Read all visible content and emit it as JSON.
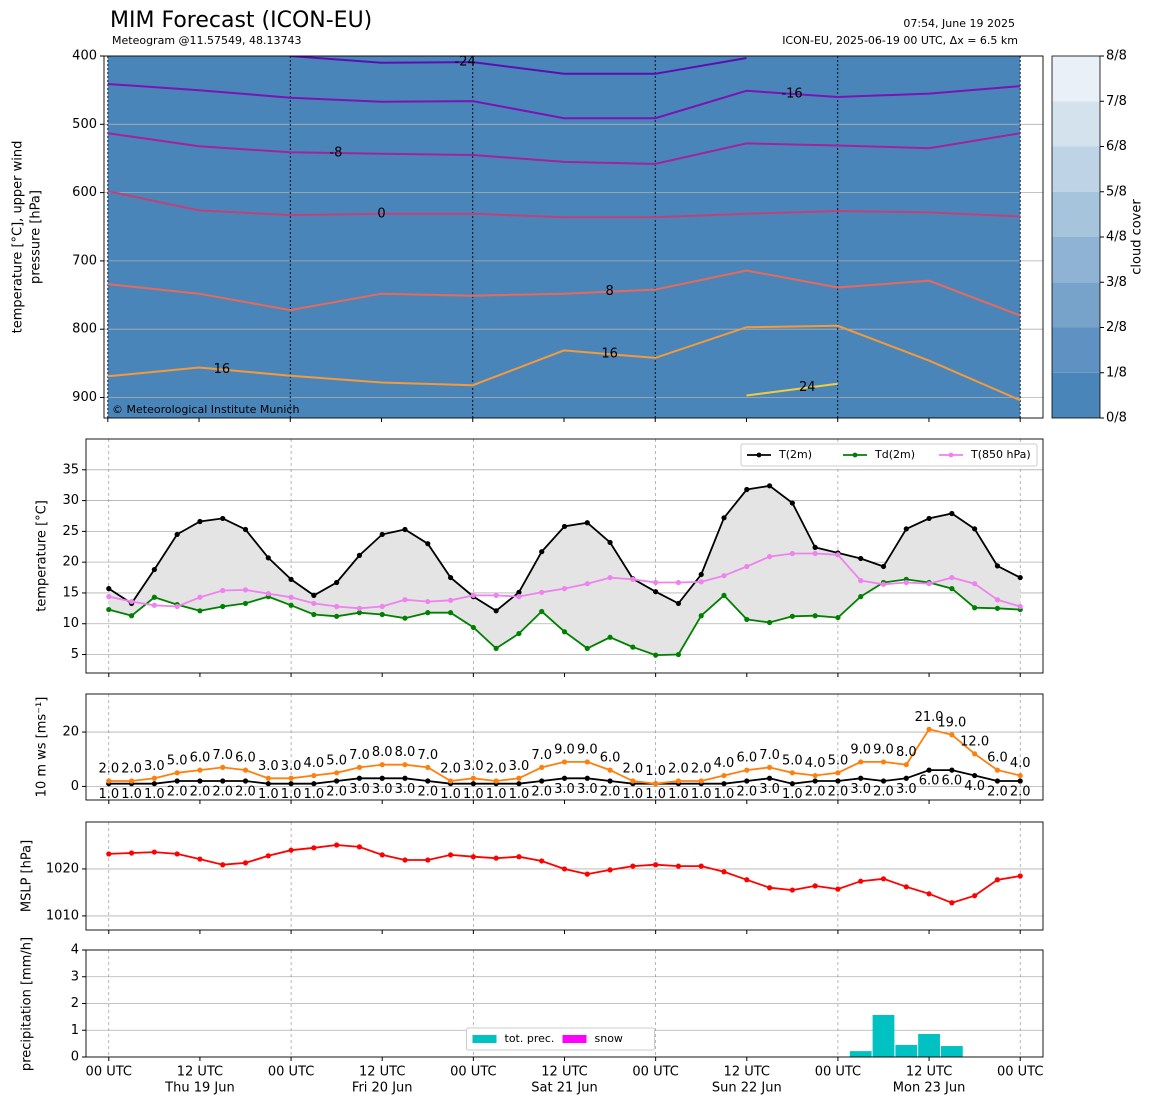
{
  "header": {
    "title": "MIM Forecast (ICON-EU)",
    "subtitle": "Meteogram @11.57549, 48.13743",
    "issued": "07:54, June 19 2025",
    "model": "ICON-EU, 2025-06-19 00 UTC, Δx = 6.5 km"
  },
  "chart_data": [
    {
      "type": "contour",
      "ylabel": [
        "temperature [°C], upper wind",
        "pressure [hPa]"
      ],
      "y_inverted": true,
      "xlim": [
        -0.5,
        123
      ],
      "ylim": [
        400,
        930
      ],
      "yticks": [
        400,
        500,
        600,
        700,
        800,
        900
      ],
      "grid": true,
      "x": [
        0,
        12,
        24,
        36,
        48,
        60,
        72,
        84,
        96,
        108,
        120
      ],
      "series": [
        {
          "label": "-24",
          "color": "#5b0fb0",
          "values": [
            null,
            null,
            400,
            410,
            409,
            426,
            426,
            403,
            null,
            null,
            null
          ]
        },
        {
          "label": "-16",
          "color": "#7a14b4",
          "values": [
            441,
            450,
            461,
            467,
            466,
            491,
            491,
            451,
            460,
            455,
            444
          ]
        },
        {
          "label": "-8",
          "color": "#a0249c",
          "values": [
            513,
            532,
            541,
            543,
            545,
            555,
            558,
            528,
            531,
            535,
            513
          ]
        },
        {
          "label": "0",
          "color": "#c2407a",
          "values": [
            598,
            626,
            633,
            631,
            631,
            636,
            636,
            631,
            627,
            629,
            635
          ]
        },
        {
          "label": "8",
          "color": "#e66a5c",
          "values": [
            734,
            748,
            772,
            748,
            751,
            748,
            742,
            714,
            739,
            729,
            780
          ]
        },
        {
          "label": "16",
          "color": "#f39a3c",
          "values": [
            869,
            856,
            868,
            878,
            882,
            831,
            842,
            797,
            795,
            846,
            904
          ]
        },
        {
          "label": "24",
          "color": "#f2cc3a",
          "values": [
            null,
            null,
            null,
            null,
            null,
            null,
            null,
            897,
            880,
            null,
            null
          ]
        }
      ],
      "colorbar": {
        "label": "cloud cover",
        "clim": [
          0,
          8
        ],
        "ticks": [
          {
            "value": 0,
            "label": "0/8"
          },
          {
            "value": 1,
            "label": "1/8"
          },
          {
            "value": 2,
            "label": "2/8"
          },
          {
            "value": 3,
            "label": "3/8"
          },
          {
            "value": 4,
            "label": "4/8"
          },
          {
            "value": 5,
            "label": "5/8"
          },
          {
            "value": 6,
            "label": "6/8"
          },
          {
            "value": 7,
            "label": "7/8"
          },
          {
            "value": 8,
            "label": "8/8"
          }
        ],
        "colors": [
          "#4a85ba",
          "#5f92c2",
          "#77a2ca",
          "#8fb3d4",
          "#a7c4dd",
          "#bed3e6",
          "#d4e2ee",
          "#e9f0f7"
        ]
      },
      "copyright": "© Meteorological Institute Munich"
    },
    {
      "type": "line",
      "ylabel": "temperature [°C]",
      "xlim": [
        -3,
        123
      ],
      "ylim": [
        2,
        40
      ],
      "yticks": [
        5,
        10,
        15,
        20,
        25,
        30,
        35
      ],
      "grid": true,
      "legend": "upper right",
      "x": [
        0,
        3,
        6,
        9,
        12,
        15,
        18,
        21,
        24,
        27,
        30,
        33,
        36,
        39,
        42,
        45,
        48,
        51,
        54,
        57,
        60,
        63,
        66,
        69,
        72,
        75,
        78,
        81,
        84,
        87,
        90,
        93,
        96,
        99,
        102,
        105,
        108,
        111,
        114,
        117,
        120
      ],
      "fill_between": {
        "series": [
          0,
          1
        ],
        "color": "#e4e4e4"
      },
      "series": [
        {
          "name": "T(2m)",
          "color": "#000000",
          "values": [
            15.7,
            13.3,
            18.8,
            24.5,
            26.6,
            27.1,
            25.3,
            20.7,
            17.2,
            14.6,
            16.7,
            21.1,
            24.5,
            25.3,
            23.0,
            17.5,
            14.4,
            12.1,
            15.1,
            21.7,
            25.8,
            26.4,
            23.2,
            17.3,
            15.2,
            13.3,
            18.0,
            27.2,
            31.8,
            32.4,
            29.6,
            22.4,
            21.5,
            20.6,
            19.3,
            25.4,
            27.1,
            27.9,
            25.4,
            19.4,
            17.5
          ]
        },
        {
          "name": "Td(2m)",
          "color": "#008000",
          "values": [
            12.3,
            11.3,
            14.3,
            13.1,
            12.1,
            12.8,
            13.3,
            14.4,
            13.0,
            11.5,
            11.2,
            11.8,
            11.5,
            10.9,
            11.8,
            11.8,
            9.4,
            6.0,
            8.4,
            12.0,
            8.7,
            6.0,
            7.8,
            6.2,
            4.9,
            5.0,
            11.3,
            14.6,
            10.7,
            10.2,
            11.2,
            11.3,
            11.0,
            14.4,
            16.7,
            17.2,
            16.7,
            15.7,
            12.6,
            12.5,
            12.3
          ]
        },
        {
          "name": "T(850 hPa)",
          "color": "#ee82ee",
          "values": [
            14.4,
            13.6,
            13.0,
            12.8,
            14.3,
            15.4,
            15.5,
            14.9,
            14.3,
            13.3,
            12.8,
            12.5,
            12.8,
            13.9,
            13.6,
            13.8,
            14.6,
            14.6,
            14.4,
            15.1,
            15.7,
            16.5,
            17.5,
            17.2,
            16.7,
            16.7,
            16.8,
            17.8,
            19.3,
            20.9,
            21.4,
            21.4,
            21.2,
            17.0,
            16.4,
            16.7,
            16.5,
            17.5,
            16.5,
            13.9,
            12.8
          ]
        }
      ]
    },
    {
      "type": "line",
      "ylabel": "10 m ws [ms⁻¹]",
      "xlim": [
        -3,
        123
      ],
      "ylim": [
        -5,
        34
      ],
      "yticks": [
        0,
        20
      ],
      "grid": true,
      "x": [
        0,
        3,
        6,
        9,
        12,
        15,
        18,
        21,
        24,
        27,
        30,
        33,
        36,
        39,
        42,
        45,
        48,
        51,
        54,
        57,
        60,
        63,
        66,
        69,
        72,
        75,
        78,
        81,
        84,
        87,
        90,
        93,
        96,
        99,
        102,
        105,
        108,
        111,
        114,
        117,
        120
      ],
      "series": [
        {
          "color": "#000000",
          "label_side": "below",
          "values": [
            1,
            1,
            1,
            2,
            2,
            2,
            2,
            1,
            1,
            1,
            2,
            3,
            3,
            3,
            2,
            1,
            1,
            1,
            1,
            2,
            3,
            3,
            2,
            1,
            1,
            1,
            1,
            1,
            2,
            3,
            1,
            2,
            2,
            3,
            2,
            3,
            6,
            6,
            4,
            2,
            2
          ],
          "value_labels": [
            "1.0",
            "1.0",
            "1.0",
            "2.0",
            "2.0",
            "2.0",
            "2.0",
            "1.0",
            "1.0",
            "1.0",
            "2.0",
            "3.0",
            "3.0",
            "3.0",
            "2.0",
            "1.0",
            "1.0",
            "1.0",
            "1.0",
            "2.0",
            "3.0",
            "3.0",
            "2.0",
            "1.0",
            "1.0",
            "1.0",
            "1.0",
            "1.0",
            "2.0",
            "3.0",
            "1.0",
            "2.0",
            "2.0",
            "3.0",
            "2.0",
            "3.0",
            "6.0",
            "6.0",
            "4.0",
            "2.0",
            "2.0"
          ]
        },
        {
          "color": "#ff7f0e",
          "label_side": "above",
          "values": [
            2,
            2,
            3,
            5,
            6,
            7,
            6,
            3,
            3,
            4,
            5,
            7,
            8,
            8,
            7,
            2,
            3,
            2,
            3,
            7,
            9,
            9,
            6,
            2,
            1,
            2,
            2,
            4,
            6,
            7,
            5,
            4,
            5,
            9,
            9,
            8,
            21,
            19,
            12,
            6,
            4
          ],
          "value_labels": [
            "2.0",
            "2.0",
            "3.0",
            "5.0",
            "6.0",
            "7.0",
            "6.0",
            "3.0",
            "3.0",
            "4.0",
            "5.0",
            "7.0",
            "8.0",
            "8.0",
            "7.0",
            "2.0",
            "3.0",
            "2.0",
            "3.0",
            "7.0",
            "9.0",
            "9.0",
            "6.0",
            "2.0",
            "1.0",
            "2.0",
            "2.0",
            "4.0",
            "6.0",
            "7.0",
            "5.0",
            "4.0",
            "5.0",
            "9.0",
            "9.0",
            "8.0",
            "21.0",
            "19.0",
            "12.0",
            "6.0",
            "4.0"
          ]
        }
      ]
    },
    {
      "type": "line",
      "ylabel": "MSLP [hPa]",
      "xlim": [
        -3,
        123
      ],
      "ylim": [
        1007,
        1030
      ],
      "yticks": [
        1010,
        1020
      ],
      "grid": true,
      "x": [
        0,
        3,
        6,
        9,
        12,
        15,
        18,
        21,
        24,
        27,
        30,
        33,
        36,
        39,
        42,
        45,
        48,
        51,
        54,
        57,
        60,
        63,
        66,
        69,
        72,
        75,
        78,
        81,
        84,
        87,
        90,
        93,
        96,
        99,
        102,
        105,
        108,
        111,
        114,
        117,
        120
      ],
      "series": [
        {
          "color": "#ff0000",
          "values": [
            1023.2,
            1023.4,
            1023.6,
            1023.2,
            1022.1,
            1020.9,
            1021.3,
            1022.8,
            1024.0,
            1024.5,
            1025.1,
            1024.7,
            1023.0,
            1021.9,
            1021.9,
            1023.0,
            1022.6,
            1022.3,
            1022.6,
            1021.7,
            1020.0,
            1018.9,
            1019.8,
            1020.6,
            1020.9,
            1020.6,
            1020.6,
            1019.4,
            1017.7,
            1016.0,
            1015.5,
            1016.4,
            1015.7,
            1017.4,
            1017.9,
            1016.2,
            1014.7,
            1012.8,
            1014.3,
            1017.7,
            1018.5
          ]
        }
      ]
    },
    {
      "type": "bar",
      "ylabel": "precipitation [mm/h]",
      "xlim": [
        -3,
        123
      ],
      "ylim": [
        0,
        4
      ],
      "yticks": [
        0,
        1,
        2,
        3,
        4
      ],
      "grid": true,
      "legend": "lower center",
      "x": [
        0,
        3,
        6,
        9,
        12,
        15,
        18,
        21,
        24,
        27,
        30,
        33,
        36,
        39,
        42,
        45,
        48,
        51,
        54,
        57,
        60,
        63,
        66,
        69,
        72,
        75,
        78,
        81,
        84,
        87,
        90,
        93,
        96,
        99,
        102,
        105,
        108,
        111,
        114,
        117,
        120
      ],
      "series": [
        {
          "name": "tot. prec.",
          "color": "#00c2c2",
          "values": [
            0,
            0,
            0,
            0,
            0,
            0,
            0,
            0,
            0,
            0,
            0,
            0,
            0,
            0,
            0,
            0,
            0,
            0,
            0,
            0,
            0,
            0,
            0,
            0,
            0,
            0,
            0,
            0,
            0,
            0,
            0,
            0,
            0,
            0.22,
            1.57,
            0.45,
            0.86,
            0.41,
            0,
            0,
            0
          ]
        },
        {
          "name": "snow",
          "color": "#ff00ff",
          "values": [
            0,
            0,
            0,
            0,
            0,
            0,
            0,
            0,
            0,
            0,
            0,
            0,
            0,
            0,
            0,
            0,
            0,
            0,
            0,
            0,
            0,
            0,
            0,
            0,
            0,
            0,
            0,
            0,
            0,
            0,
            0,
            0,
            0,
            0,
            0,
            0,
            0,
            0,
            0,
            0,
            0
          ]
        }
      ],
      "xticks": [
        {
          "value": 0,
          "label": "00 UTC"
        },
        {
          "value": 12,
          "label": "12 UTC"
        },
        {
          "value": 24,
          "label": "00 UTC"
        },
        {
          "value": 36,
          "label": "12 UTC"
        },
        {
          "value": 48,
          "label": "00 UTC"
        },
        {
          "value": 60,
          "label": "12 UTC"
        },
        {
          "value": 72,
          "label": "00 UTC"
        },
        {
          "value": 84,
          "label": "12 UTC"
        },
        {
          "value": 96,
          "label": "00 UTC"
        },
        {
          "value": 108,
          "label": "12 UTC"
        },
        {
          "value": 120,
          "label": "00 UTC"
        }
      ],
      "dates": [
        {
          "value": 12,
          "label": "Thu 19 Jun"
        },
        {
          "value": 36,
          "label": "Fri 20 Jun"
        },
        {
          "value": 60,
          "label": "Sat 21 Jun"
        },
        {
          "value": 84,
          "label": "Sun 22 Jun"
        },
        {
          "value": 108,
          "label": "Mon 23 Jun"
        }
      ]
    }
  ]
}
